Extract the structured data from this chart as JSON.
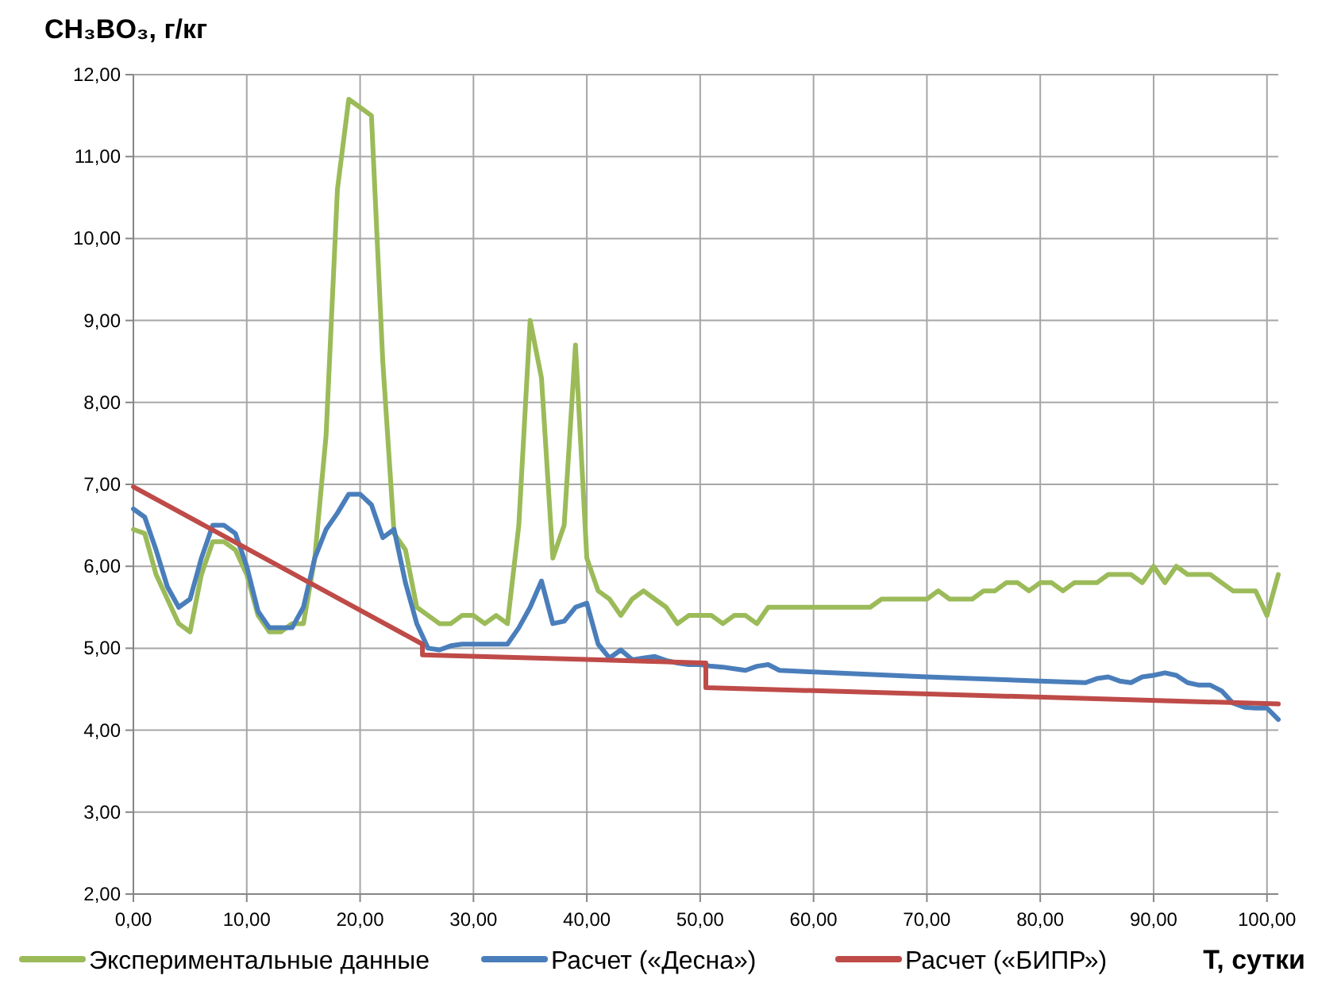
{
  "chart_data": {
    "type": "line",
    "xlabel": "T, сутки",
    "ylabel": "CH₃BO₃, г/кг",
    "xlim": [
      0,
      101
    ],
    "ylim": [
      2,
      12
    ],
    "xticks": [
      {
        "value": 0,
        "label": "0,00"
      },
      {
        "value": 10,
        "label": "10,00"
      },
      {
        "value": 20,
        "label": "20,00"
      },
      {
        "value": 30,
        "label": "30,00"
      },
      {
        "value": 40,
        "label": "40,00"
      },
      {
        "value": 50,
        "label": "50,00"
      },
      {
        "value": 60,
        "label": "60,00"
      },
      {
        "value": 70,
        "label": "70,00"
      },
      {
        "value": 80,
        "label": "80,00"
      },
      {
        "value": 90,
        "label": "90,00"
      },
      {
        "value": 100,
        "label": "100,00"
      }
    ],
    "yticks": [
      {
        "value": 2,
        "label": "2,00"
      },
      {
        "value": 3,
        "label": "3,00"
      },
      {
        "value": 4,
        "label": "4,00"
      },
      {
        "value": 5,
        "label": "5,00"
      },
      {
        "value": 6,
        "label": "6,00"
      },
      {
        "value": 7,
        "label": "7,00"
      },
      {
        "value": 8,
        "label": "8,00"
      },
      {
        "value": 9,
        "label": "9,00"
      },
      {
        "value": 10,
        "label": "10,00"
      },
      {
        "value": 11,
        "label": "11,00"
      },
      {
        "value": 12,
        "label": "12,00"
      }
    ],
    "grid": true,
    "legend": "bottom",
    "marker": "none",
    "line_style": "solid",
    "series": [
      {
        "name": "Экспериментальные данные",
        "color": "#9bbb59",
        "x": [
          0,
          1,
          2,
          3,
          4,
          5,
          6,
          7,
          8,
          9,
          10,
          11,
          12,
          13,
          14,
          15,
          16,
          17,
          18,
          19,
          20,
          21,
          22,
          23,
          24,
          25,
          26,
          27,
          28,
          29,
          30,
          31,
          32,
          33,
          34,
          35,
          36,
          37,
          38,
          39,
          40,
          41,
          42,
          43,
          44,
          45,
          46,
          47,
          48,
          49,
          50,
          51,
          52,
          53,
          54,
          55,
          56,
          60,
          65,
          66,
          70,
          71,
          72,
          73,
          74,
          75,
          76,
          77,
          78,
          79,
          80,
          81,
          82,
          83,
          84,
          85,
          86,
          87,
          88,
          89,
          90,
          91,
          92,
          93,
          94,
          95,
          96,
          97,
          98,
          99,
          100,
          101
        ],
        "values": [
          6.45,
          6.4,
          5.9,
          5.6,
          5.3,
          5.2,
          5.9,
          6.3,
          6.3,
          6.2,
          5.9,
          5.4,
          5.2,
          5.2,
          5.3,
          5.3,
          6.1,
          7.6,
          10.6,
          11.7,
          11.6,
          11.5,
          8.5,
          6.4,
          6.2,
          5.5,
          5.4,
          5.3,
          5.3,
          5.4,
          5.4,
          5.3,
          5.4,
          5.3,
          6.5,
          9.0,
          8.3,
          6.1,
          6.5,
          8.7,
          6.1,
          5.7,
          5.6,
          5.4,
          5.6,
          5.7,
          5.6,
          5.5,
          5.3,
          5.4,
          5.4,
          5.4,
          5.3,
          5.4,
          5.4,
          5.3,
          5.5,
          5.5,
          5.5,
          5.6,
          5.6,
          5.7,
          5.6,
          5.6,
          5.6,
          5.7,
          5.7,
          5.8,
          5.8,
          5.7,
          5.8,
          5.8,
          5.7,
          5.8,
          5.8,
          5.8,
          5.9,
          5.9,
          5.9,
          5.8,
          6.0,
          5.8,
          6.0,
          5.9,
          5.9,
          5.9,
          5.8,
          5.7,
          5.7,
          5.7,
          5.4,
          5.9
        ]
      },
      {
        "name": "Расчет («Десна»)",
        "color": "#4a7ebb",
        "x": [
          0,
          1,
          2,
          3,
          4,
          5,
          6,
          7,
          8,
          9,
          10,
          11,
          12,
          13,
          14,
          15,
          16,
          17,
          18,
          19,
          20,
          21,
          22,
          23,
          24,
          25,
          26,
          27,
          28,
          29,
          30,
          31,
          32,
          33,
          34,
          35,
          36,
          37,
          38,
          39,
          40,
          41,
          42,
          43,
          44,
          45,
          46,
          47,
          48,
          49,
          50,
          51,
          52,
          53,
          54,
          55,
          56,
          57,
          60,
          70,
          80,
          84,
          85,
          86,
          87,
          88,
          89,
          90,
          91,
          92,
          93,
          94,
          95,
          96,
          97,
          98,
          99,
          100,
          101
        ],
        "values": [
          6.7,
          6.6,
          6.2,
          5.75,
          5.5,
          5.6,
          6.1,
          6.5,
          6.5,
          6.4,
          6.0,
          5.45,
          5.25,
          5.25,
          5.25,
          5.5,
          6.1,
          6.45,
          6.65,
          6.88,
          6.88,
          6.75,
          6.35,
          6.45,
          5.8,
          5.3,
          5.0,
          4.98,
          5.03,
          5.05,
          5.05,
          5.05,
          5.05,
          5.05,
          5.25,
          5.5,
          5.82,
          5.3,
          5.33,
          5.5,
          5.55,
          5.05,
          4.88,
          4.98,
          4.86,
          4.88,
          4.9,
          4.85,
          4.82,
          4.8,
          4.8,
          4.78,
          4.77,
          4.75,
          4.73,
          4.78,
          4.8,
          4.73,
          4.71,
          4.65,
          4.6,
          4.58,
          4.63,
          4.65,
          4.6,
          4.58,
          4.65,
          4.67,
          4.7,
          4.67,
          4.58,
          4.55,
          4.55,
          4.48,
          4.33,
          4.28,
          4.27,
          4.27,
          4.13
        ]
      },
      {
        "name": "Расчет («БИПР»)",
        "color": "#be4b48",
        "x": [
          0,
          25.5,
          25.5,
          50.5,
          50.5,
          101
        ],
        "values": [
          6.97,
          5.05,
          4.92,
          4.82,
          4.52,
          4.32
        ]
      }
    ]
  }
}
